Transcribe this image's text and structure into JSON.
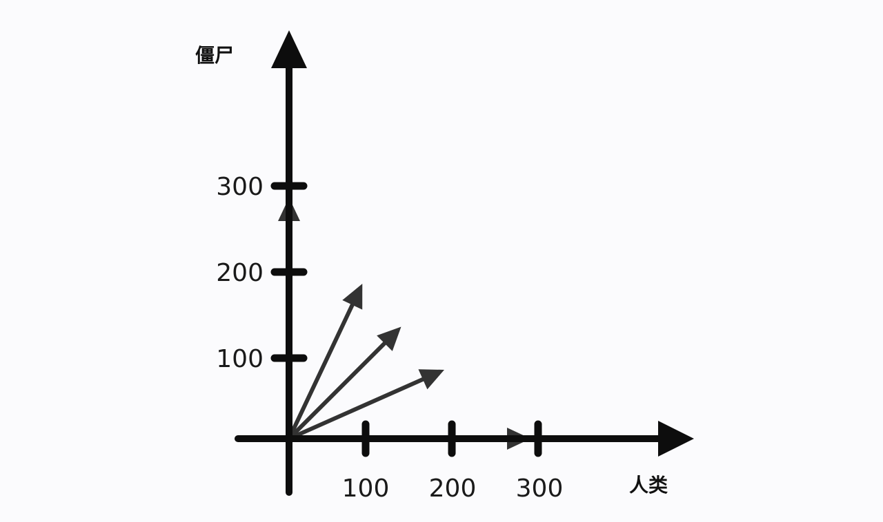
{
  "axes": {
    "y_title": "僵尸",
    "x_title": "人类",
    "x_ticks": [
      "100",
      "200",
      "300"
    ],
    "y_ticks": [
      "100",
      "200",
      "300"
    ]
  },
  "vectors": [
    {
      "x": 0,
      "y": 280
    },
    {
      "x": 85,
      "y": 180
    },
    {
      "x": 130,
      "y": 130
    },
    {
      "x": 180,
      "y": 80
    },
    {
      "x": 280,
      "y": 0
    }
  ],
  "colors": {
    "axis": "#0d0d0d",
    "vector": "#333333",
    "background": "#fbfbfd"
  }
}
